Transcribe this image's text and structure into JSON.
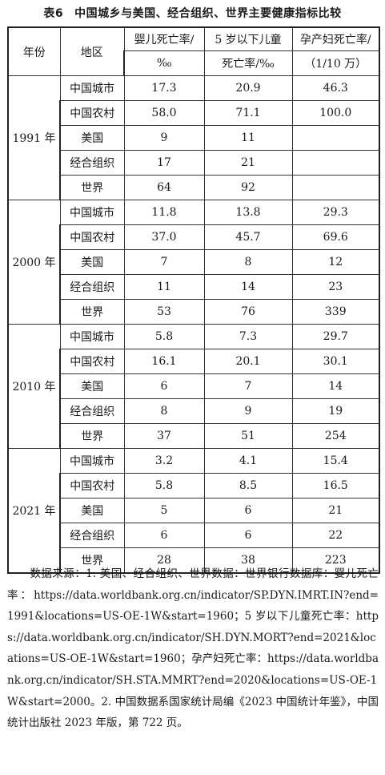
{
  "title": {
    "number": "表6",
    "text": "中国城乡与美国、经合组织、世界主要健康指标比较"
  },
  "headers": {
    "year": "年份",
    "region": "地区",
    "infant_line1": "婴儿死亡率/",
    "infant_line2": "‰",
    "under5_line1": "5 岁以下儿童",
    "under5_line2": "死亡率/‰",
    "maternal_line1": "孕产妇死亡率/",
    "maternal_line2": "（1/10 万）"
  },
  "groups": [
    {
      "year": "1991 年",
      "rows": [
        {
          "region": "中国城市",
          "infant": "17.3",
          "under5": "20.9",
          "maternal": "46.3"
        },
        {
          "region": "中国农村",
          "infant": "58.0",
          "under5": "71.1",
          "maternal": "100.0"
        },
        {
          "region": "美国",
          "infant": "9",
          "under5": "11",
          "maternal": ""
        },
        {
          "region": "经合组织",
          "infant": "17",
          "under5": "21",
          "maternal": ""
        },
        {
          "region": "世界",
          "infant": "64",
          "under5": "92",
          "maternal": ""
        }
      ]
    },
    {
      "year": "2000 年",
      "rows": [
        {
          "region": "中国城市",
          "infant": "11.8",
          "under5": "13.8",
          "maternal": "29.3"
        },
        {
          "region": "中国农村",
          "infant": "37.0",
          "under5": "45.7",
          "maternal": "69.6"
        },
        {
          "region": "美国",
          "infant": "7",
          "under5": "8",
          "maternal": "12"
        },
        {
          "region": "经合组织",
          "infant": "11",
          "under5": "14",
          "maternal": "23"
        },
        {
          "region": "世界",
          "infant": "53",
          "under5": "76",
          "maternal": "339"
        }
      ]
    },
    {
      "year": "2010 年",
      "rows": [
        {
          "region": "中国城市",
          "infant": "5.8",
          "under5": "7.3",
          "maternal": "29.7"
        },
        {
          "region": "中国农村",
          "infant": "16.1",
          "under5": "20.1",
          "maternal": "30.1"
        },
        {
          "region": "美国",
          "infant": "6",
          "under5": "7",
          "maternal": "14"
        },
        {
          "region": "经合组织",
          "infant": "8",
          "under5": "9",
          "maternal": "19"
        },
        {
          "region": "世界",
          "infant": "37",
          "under5": "51",
          "maternal": "254"
        }
      ]
    },
    {
      "year": "2021 年",
      "rows": [
        {
          "region": "中国城市",
          "infant": "3.2",
          "under5": "4.1",
          "maternal": "15.4"
        },
        {
          "region": "中国农村",
          "infant": "5.8",
          "under5": "8.5",
          "maternal": "16.5"
        },
        {
          "region": "美国",
          "infant": "5",
          "under5": "6",
          "maternal": "21"
        },
        {
          "region": "经合组织",
          "infant": "6",
          "under5": "6",
          "maternal": "22"
        },
        {
          "region": "世界",
          "infant": "28",
          "under5": "38",
          "maternal": "223"
        }
      ]
    }
  ],
  "source_note": "数据来源：1. 美国、经合组织、世界数据：世界银行数据库：婴儿死亡率：https://data.worldbank.org.cn/indicator/SP.DYN.IMRT.IN?end=1991&locations=US-OE-1W&start=1960；5 岁以下儿童死亡率：https://data.worldbank.org.cn/indicator/SH.DYN.MORT?end=2021&locations=US-OE-1W&start=1960；孕产妇死亡率：https://data.worldbank.org.cn/indicator/SH.STA.MMRT?end=2020&locations=US-OE-1W&start=2000。2. 中国数据系国家统计局编《2023 中国统计年鉴》，中国统计出版社 2023 年版，第 722 页。"
}
